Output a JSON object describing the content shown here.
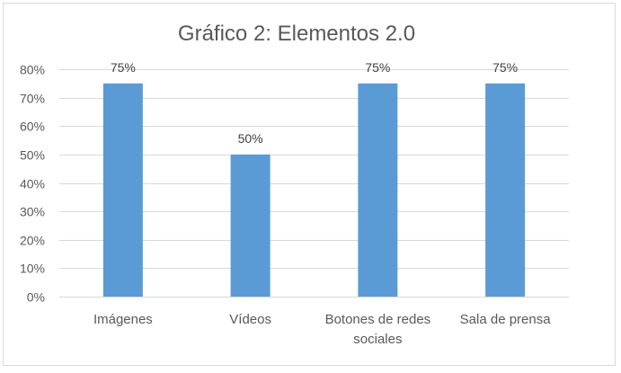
{
  "chart_data": {
    "type": "bar",
    "title": "Gráfico 2: Elementos 2.0",
    "xlabel": "",
    "ylabel": "",
    "categories": [
      [
        "Imágenes"
      ],
      [
        "Vídeos"
      ],
      [
        "Botones de redes",
        "sociales"
      ],
      [
        "Sala de prensa"
      ]
    ],
    "values": [
      75,
      50,
      75,
      75
    ],
    "data_labels": [
      "75%",
      "50%",
      "75%",
      "75%"
    ],
    "ylim": [
      0,
      80
    ],
    "yticks": [
      0,
      10,
      20,
      30,
      40,
      50,
      60,
      70,
      80
    ],
    "ytick_labels": [
      "0%",
      "10%",
      "20%",
      "30%",
      "40%",
      "50%",
      "60%",
      "70%",
      "80%"
    ],
    "grid": true,
    "legend": "none",
    "bar_color": "#5b9bd5"
  }
}
